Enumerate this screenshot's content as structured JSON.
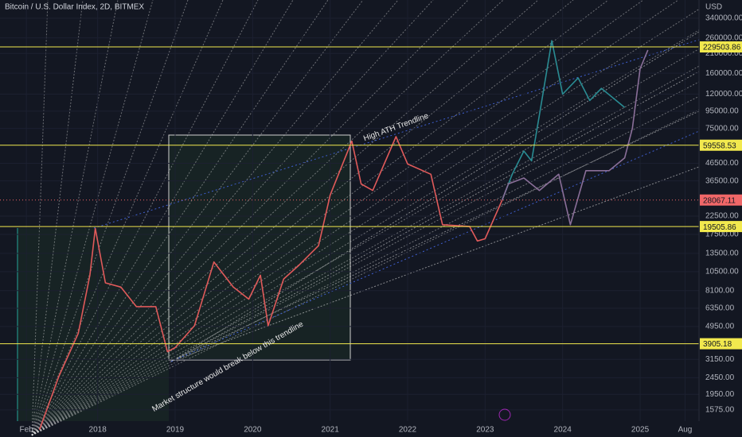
{
  "chart_data": {
    "type": "line",
    "title": "Bitcoin / U.S. Dollar Index, 2D, BITMEX",
    "y_axis_label": "USD",
    "log_scale": true,
    "ylim": [
      1350,
      437000
    ],
    "yticks": [
      {
        "value": 340000,
        "label": "340000.00"
      },
      {
        "value": 260000,
        "label": "260000.00"
      },
      {
        "value": 210000,
        "label": "210000.00"
      },
      {
        "value": 160000,
        "label": "160000.00"
      },
      {
        "value": 120000,
        "label": "120000.00"
      },
      {
        "value": 95000,
        "label": "95000.00"
      },
      {
        "value": 75000,
        "label": "75000.00"
      },
      {
        "value": 46500,
        "label": "46500.00"
      },
      {
        "value": 36500,
        "label": "36500.00"
      },
      {
        "value": 22500,
        "label": "22500.00"
      },
      {
        "value": 17500,
        "label": "17500.00"
      },
      {
        "value": 13500,
        "label": "13500.00"
      },
      {
        "value": 10500,
        "label": "10500.00"
      },
      {
        "value": 8100,
        "label": "8100.00"
      },
      {
        "value": 6350,
        "label": "6350.00"
      },
      {
        "value": 4950,
        "label": "4950.00"
      },
      {
        "value": 3150,
        "label": "3150.00"
      },
      {
        "value": 2450,
        "label": "2450.00"
      },
      {
        "value": 1950,
        "label": "1950.00"
      },
      {
        "value": 1575,
        "label": "1575.00"
      }
    ],
    "xlim": [
      2016.74,
      2025.76
    ],
    "xticks": [
      {
        "value": 2017.08,
        "label": "Feb"
      },
      {
        "value": 2018,
        "label": "2018"
      },
      {
        "value": 2019,
        "label": "2019"
      },
      {
        "value": 2020,
        "label": "2020"
      },
      {
        "value": 2021,
        "label": "2021"
      },
      {
        "value": 2022,
        "label": "2022"
      },
      {
        "value": 2023,
        "label": "2023"
      },
      {
        "value": 2024,
        "label": "2024"
      },
      {
        "value": 2025,
        "label": "2025"
      },
      {
        "value": 2025.58,
        "label": "Aug"
      }
    ],
    "series": [
      {
        "color": "#e05a5a",
        "x": [
          2017.25,
          2017.5,
          2017.75,
          2017.9,
          2017.97,
          2018.1,
          2018.3,
          2018.5,
          2018.75,
          2018.9,
          2019.0,
          2019.25,
          2019.5,
          2019.75,
          2019.95,
          2020.1,
          2020.2,
          2020.4,
          2020.6,
          2020.85,
          2021.0,
          2021.28,
          2021.4,
          2021.55,
          2021.85,
          2022.0,
          2022.3,
          2022.45,
          2022.8,
          2022.9,
          2023.0,
          2023.22
        ],
        "values": [
          1200,
          2500,
          4500,
          10000,
          19000,
          9000,
          8500,
          6500,
          6500,
          3500,
          3700,
          5000,
          12000,
          8500,
          7200,
          10000,
          5000,
          9500,
          11500,
          15000,
          30000,
          63000,
          35000,
          32000,
          67000,
          46000,
          40000,
          20000,
          19500,
          16000,
          16500,
          28067
        ]
      },
      {
        "color": "#2a8c93",
        "x": [
          2023.22,
          2023.35,
          2023.5,
          2023.6,
          2023.7,
          2023.86,
          2024.0,
          2024.2,
          2024.35,
          2024.5,
          2024.8
        ],
        "values": [
          28067,
          40000,
          55000,
          48000,
          90000,
          250000,
          120000,
          150000,
          110000,
          130000,
          100000
        ]
      },
      {
        "color": "#8a6f99",
        "x": [
          2023.22,
          2023.3,
          2023.5,
          2023.7,
          2023.95,
          2024.1,
          2024.3,
          2024.6,
          2024.8,
          2024.9,
          2025.0,
          2025.1
        ],
        "values": [
          28067,
          35000,
          38000,
          32000,
          40000,
          20000,
          42000,
          42000,
          50000,
          75000,
          170000,
          220000
        ]
      }
    ],
    "levels": [
      229503.86,
      59558.53,
      19505.86,
      3905.18
    ],
    "level_color": "#f2e94e",
    "last_price": 28067.11,
    "last_price_color": "#f06768",
    "annotations": [
      "High ATH Trendline",
      "Market structure would break below this trendline"
    ]
  }
}
